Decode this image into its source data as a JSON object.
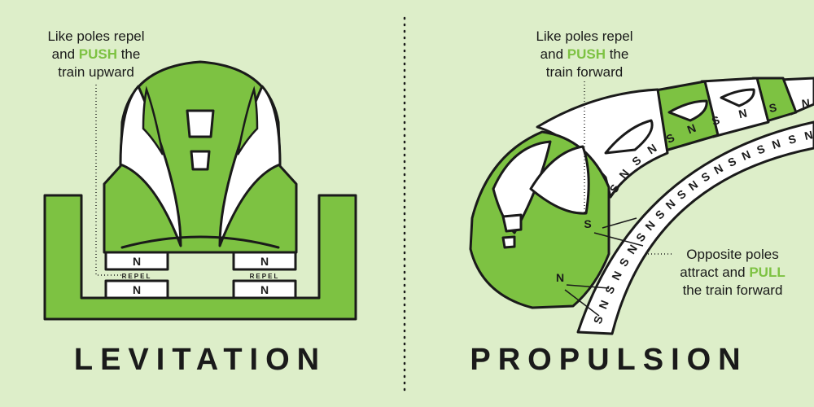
{
  "levitation": {
    "heading": "LEVITATION",
    "note": {
      "line1": "Like poles repel",
      "line2_pre": "and ",
      "line2_accent": "PUSH",
      "line2_post": " the",
      "line3": "train upward"
    },
    "magnets": {
      "train_left": "N",
      "train_right": "N",
      "track_left": "N",
      "track_right": "N",
      "gap_label": "REPEL"
    }
  },
  "propulsion": {
    "heading": "PROPULSION",
    "note_push": {
      "line1": "Like poles repel",
      "line2_pre": "and ",
      "line2_accent": "PUSH",
      "line2_post": " the",
      "line3": "train forward"
    },
    "note_pull": {
      "line1": "Opposite poles",
      "line2_pre": "attract and ",
      "line2_accent": "PULL",
      "line3": "the train forward"
    },
    "train_poles": [
      "S",
      "N",
      "S",
      "N",
      "S",
      "N",
      "S",
      "N",
      "S",
      "N"
    ],
    "near_poles": {
      "upper": "S",
      "lower": "N"
    },
    "track_sequence": [
      "S",
      "N",
      "S",
      "N",
      "S",
      "N",
      "S",
      "N",
      "S",
      "N",
      "S",
      "N",
      "S",
      "N",
      "S",
      "N",
      "S",
      "N",
      "S",
      "N"
    ]
  },
  "colors": {
    "background": "#ddeec9",
    "accent": "#7dc242",
    "ink": "#1a1a1a",
    "panel": "#ffffff"
  }
}
